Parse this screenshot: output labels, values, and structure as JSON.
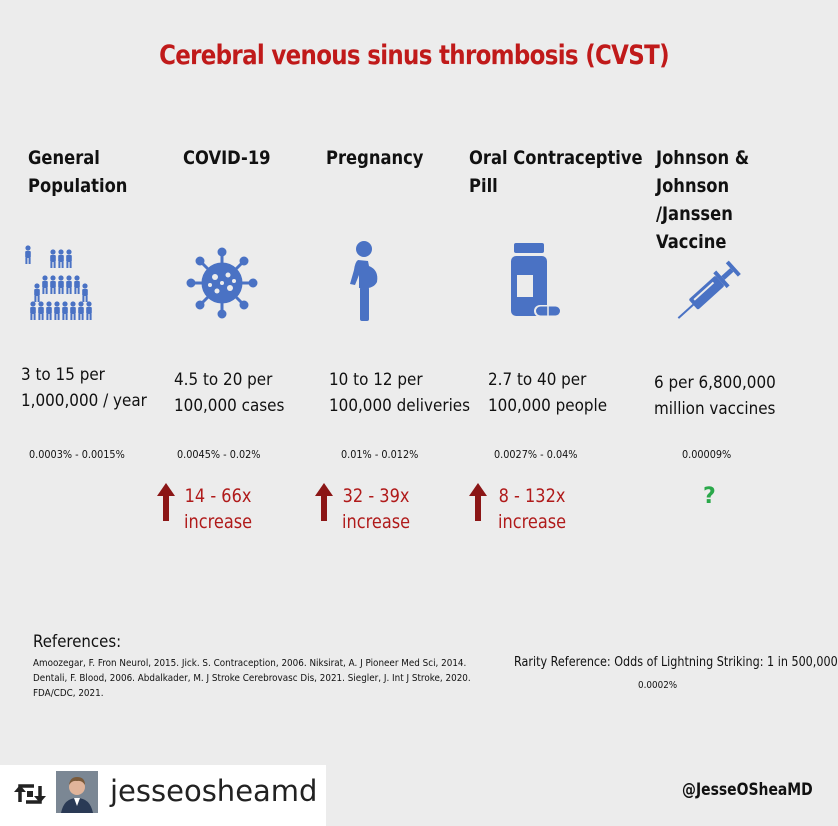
{
  "title": "Cerebral venous sinus thrombosis (CVST)",
  "colors": {
    "title": "#c01a1a",
    "icon": "#4a72c4",
    "increase": "#b01a1a",
    "question": "#2aa84a"
  },
  "columns": [
    {
      "header": "General\nPopulation",
      "icon": "people-pyramid-icon",
      "rate": "3 to 15 per\n1,000,000 / year",
      "percent": "0.0003% - 0.0015%",
      "increase_line1": "",
      "increase_line2": ""
    },
    {
      "header": "COVID-19",
      "icon": "virus-icon",
      "rate": "4.5 to 20 per\n100,000 cases",
      "percent": "0.0045% - 0.02%",
      "increase_line1": "14 - 66x",
      "increase_line2": "increase"
    },
    {
      "header": "Pregnancy",
      "icon": "pregnant-woman-icon",
      "rate": "10 to 12 per\n100,000 deliveries",
      "percent": "0.01% - 0.012%",
      "increase_line1": "32 - 39x",
      "increase_line2": "increase"
    },
    {
      "header": "Oral Contraceptive\nPill",
      "icon": "pill-bottle-icon",
      "rate": "2.7 to 40 per\n100,000 people",
      "percent": "0.0027% - 0.04%",
      "increase_line1": "8 - 132x",
      "increase_line2": "increase"
    },
    {
      "header": "Johnson & Johnson\n/Janssen Vaccine",
      "icon": "syringe-icon",
      "rate": "6 per 6,800,000\nmillion vaccines",
      "percent": "0.00009%",
      "unknown": "?"
    }
  ],
  "references": {
    "title": "References:",
    "body": "Amoozegar, F. Fron Neurol, 2015. Jick. S. Contraception, 2006. Niksirat, A. J Pioneer Med Sci, 2014. Dentali, F. Blood, 2006. Abdalkader, M. J Stroke Cerebrovasc Dis, 2021. Siegler, J. Int J Stroke, 2020.  FDA/CDC, 2021."
  },
  "rarity": {
    "text": "Rarity Reference: Odds of Lightning Striking: 1 in 500,000",
    "percent": "0.0002%"
  },
  "footer": {
    "username": "jesseosheamd",
    "handle": "@JesseOSheaMD"
  }
}
